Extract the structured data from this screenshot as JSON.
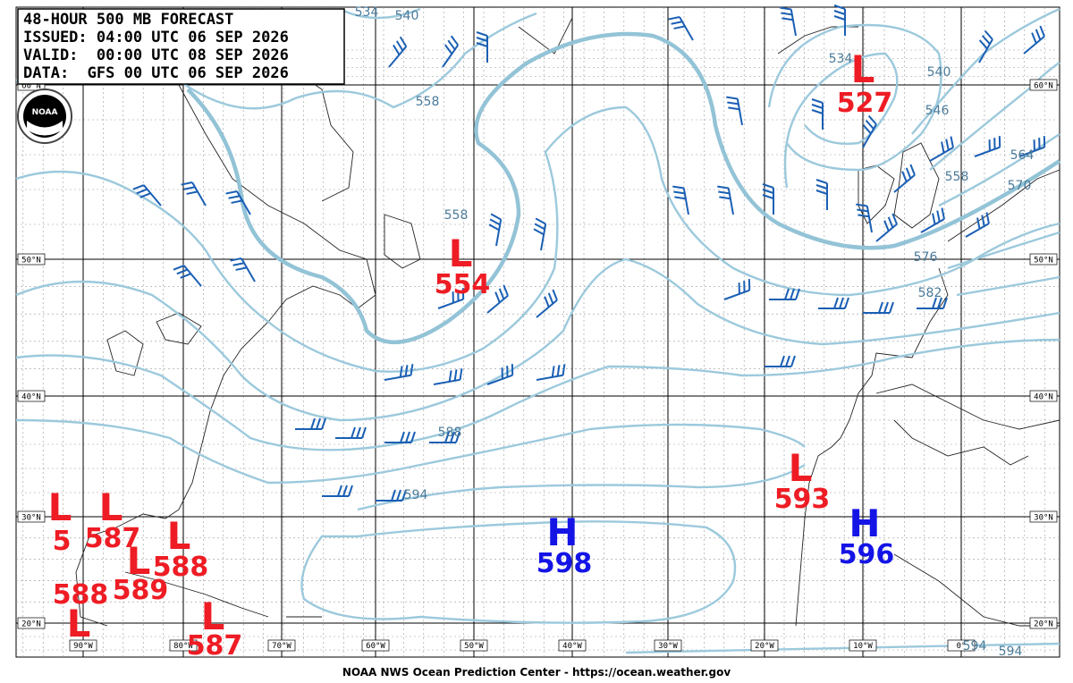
{
  "header": {
    "lines": [
      "48-HOUR 500 MB FORECAST",
      "ISSUED: 04:00 UTC 06 SEP 2026",
      "VALID:  00:00 UTC 08 SEP 2026",
      "DATA:  GFS 00 UTC 06 SEP 2026"
    ]
  },
  "logo": "NOAA",
  "centers": [
    {
      "symbol": "L",
      "value": 527
    },
    {
      "symbol": "L",
      "value": 554
    },
    {
      "symbol": "L",
      "value": 593
    },
    {
      "symbol": "H",
      "value": 598
    },
    {
      "symbol": "H",
      "value": 596
    },
    {
      "symbol": "L",
      "value": 587
    },
    {
      "symbol": "L",
      "value": 5
    },
    {
      "symbol": "L",
      "value": 588
    },
    {
      "symbol": "L",
      "value": 589
    },
    {
      "symbol": "L",
      "value": 588
    },
    {
      "symbol": "L",
      "value": 587
    }
  ],
  "contour_labels": [
    "534",
    "540",
    "558",
    "558",
    "588",
    "594",
    "534",
    "540",
    "546",
    "558",
    "564",
    "570",
    "576",
    "582",
    "594",
    "594"
  ],
  "lat_labels": [
    "60°N",
    "50°N",
    "40°N",
    "30°N",
    "20°N"
  ],
  "lon_labels": [
    "90°W",
    "80°W",
    "70°W",
    "60°W",
    "50°W",
    "40°W",
    "30°W",
    "20°W",
    "10°W",
    "0°"
  ],
  "footer": "NOAA NWS Ocean Prediction Center - https://ocean.weather.gov"
}
